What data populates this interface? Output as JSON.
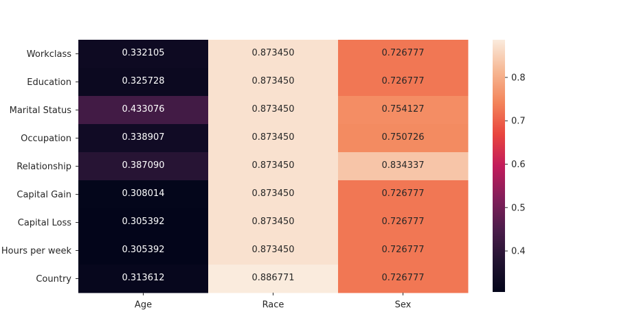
{
  "chart_data": {
    "type": "heatmap",
    "title": "",
    "xlabel": "",
    "ylabel": "",
    "columns": [
      "Age",
      "Race",
      "Sex"
    ],
    "rows": [
      "Workclass",
      "Education",
      "Marital Status",
      "Occupation",
      "Relationship",
      "Capital Gain",
      "Capital Loss",
      "Hours per week",
      "Country"
    ],
    "values": [
      [
        "0.332105",
        "0.873450",
        "0.726777"
      ],
      [
        "0.325728",
        "0.873450",
        "0.726777"
      ],
      [
        "0.433076",
        "0.873450",
        "0.754127"
      ],
      [
        "0.338907",
        "0.873450",
        "0.750726"
      ],
      [
        "0.387090",
        "0.873450",
        "0.834337"
      ],
      [
        "0.308014",
        "0.873450",
        "0.726777"
      ],
      [
        "0.305392",
        "0.873450",
        "0.726777"
      ],
      [
        "0.305392",
        "0.873450",
        "0.726777"
      ],
      [
        "0.313612",
        "0.886771",
        "0.726777"
      ]
    ],
    "colorbar": {
      "range": [
        0.305392,
        0.886771
      ],
      "ticks": [
        "0.4",
        "0.5",
        "0.6",
        "0.7",
        "0.8"
      ],
      "colormap": "rocket"
    },
    "grid": false
  }
}
